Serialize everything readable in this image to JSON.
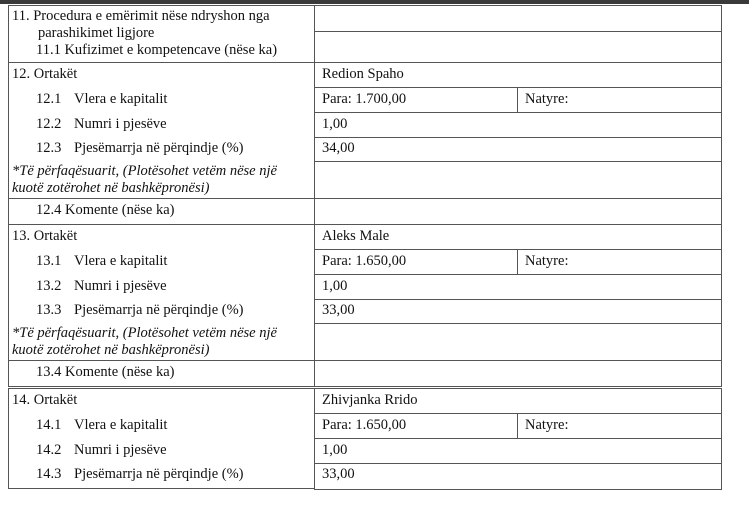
{
  "section11": {
    "title_line1": "11. Procedura e emërimit nëse ndryshon nga",
    "title_line2": "parashikimet ligjore",
    "sub": "11.1 Kufizimet e kompetencave (nëse ka)"
  },
  "partners": [
    {
      "heading": "12. Ortakët",
      "name": "Redion Spaho",
      "capital_num": "12.1",
      "capital_label": "Vlera e kapitalit",
      "capital_value": "Para: 1.700,00",
      "nature": "Natyre:",
      "shares_num": "12.2",
      "shares_label": "Numri i pjesëve",
      "shares_value": "1,00",
      "pct_num": "12.3",
      "pct_label": "Pjesëmarrja në përqindje (%)",
      "pct_value": "34,00",
      "rep_line1": "*Të përfaqësuarit, (Plotësohet vetëm nëse një",
      "rep_line2": "kuotë zotërohet në bashkëpronësi)",
      "comment": "12.4  Komente (nëse ka)"
    },
    {
      "heading": "13. Ortakët",
      "name": "Aleks Male",
      "capital_num": "13.1",
      "capital_label": "Vlera e kapitalit",
      "capital_value": "Para: 1.650,00",
      "nature": "Natyre:",
      "shares_num": "13.2",
      "shares_label": "Numri i pjesëve",
      "shares_value": "1,00",
      "pct_num": "13.3",
      "pct_label": "Pjesëmarrja në përqindje (%)",
      "pct_value": "33,00",
      "rep_line1": "*Të përfaqësuarit, (Plotësohet vetëm nëse një",
      "rep_line2": "kuotë zotërohet në bashkëpronësi)",
      "comment": "13.4  Komente (nëse ka)"
    },
    {
      "heading": "14. Ortakët",
      "name": "Zhivjanka Rrido",
      "capital_num": "14.1",
      "capital_label": "Vlera e kapitalit",
      "capital_value": "Para: 1.650,00",
      "nature": "Natyre:",
      "shares_num": "14.2",
      "shares_label": "Numri i pjesëve",
      "shares_value": "1,00",
      "pct_num": "14.3",
      "pct_label": "Pjesëmarrja në përqindje (%)",
      "pct_value": "33,00"
    }
  ]
}
